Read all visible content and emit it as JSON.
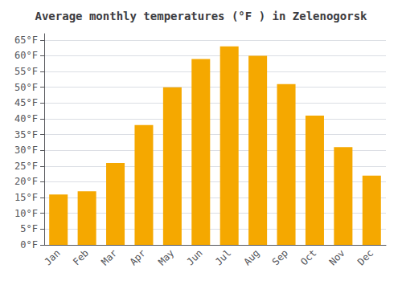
{
  "chart_data": {
    "type": "bar",
    "title": "Average monthly temperatures (°F ) in Zelenogorsk",
    "categories": [
      "Jan",
      "Feb",
      "Mar",
      "Apr",
      "May",
      "Jun",
      "Jul",
      "Aug",
      "Sep",
      "Oct",
      "Nov",
      "Dec"
    ],
    "values": [
      16,
      17,
      26,
      38,
      50,
      59,
      63,
      60,
      51,
      41,
      31,
      22
    ],
    "color": "#F5A800",
    "ylim": [
      0,
      67
    ],
    "yticks": [
      {
        "value": 0,
        "label": "0°F"
      },
      {
        "value": 5,
        "label": "5°F"
      },
      {
        "value": 10,
        "label": "10°F"
      },
      {
        "value": 15,
        "label": "15°F"
      },
      {
        "value": 20,
        "label": "20°F"
      },
      {
        "value": 25,
        "label": "25°F"
      },
      {
        "value": 30,
        "label": "30°F"
      },
      {
        "value": 35,
        "label": "35°F"
      },
      {
        "value": 40,
        "label": "40°F"
      },
      {
        "value": 45,
        "label": "45°F"
      },
      {
        "value": 50,
        "label": "50°F"
      },
      {
        "value": 55,
        "label": "55°F"
      },
      {
        "value": 60,
        "label": "60°F"
      },
      {
        "value": 65,
        "label": "65°F"
      }
    ],
    "grid": true
  }
}
